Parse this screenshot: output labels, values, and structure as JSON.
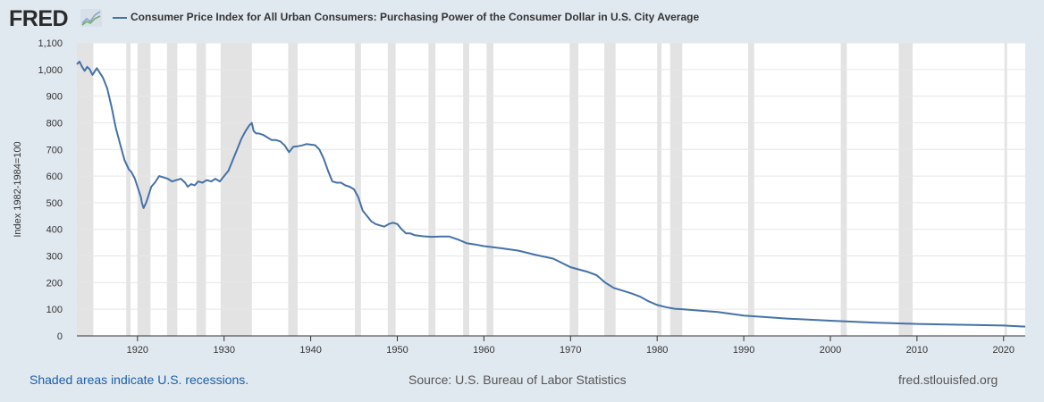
{
  "header": {
    "logo": "FRED",
    "title": "Consumer Price Index for All Urban Consumers: Purchasing Power of the Consumer Dollar in U.S. City Average"
  },
  "footer": {
    "recessions_note": "Shaded areas indicate U.S. recessions.",
    "source": "Source: U.S. Bureau of Labor Statistics",
    "site": "fred.stlouisfed.org"
  },
  "colors": {
    "background": "#e1e9f0",
    "plot": "#ffffff",
    "series": "#4572a7",
    "recession": "#e3e3e3",
    "link": "#1d5ea6"
  },
  "chart_data": {
    "type": "line",
    "ylabel": "Index 1982-1984=100",
    "xlabel": "",
    "xlim": [
      1913,
      2022.5
    ],
    "ylim": [
      0,
      1100
    ],
    "x_ticks": [
      1920,
      1930,
      1940,
      1950,
      1960,
      1970,
      1980,
      1990,
      2000,
      2010,
      2020
    ],
    "x_tick_labels": [
      "1920",
      "1930",
      "1940",
      "1950",
      "1960",
      "1970",
      "1980",
      "1990",
      "2000",
      "2010",
      "2020"
    ],
    "y_ticks": [
      0,
      100,
      200,
      300,
      400,
      500,
      600,
      700,
      800,
      900,
      1000,
      1100
    ],
    "y_tick_labels": [
      "0",
      "100",
      "200",
      "300",
      "400",
      "500",
      "600",
      "700",
      "800",
      "900",
      "1,000",
      "1,100"
    ],
    "grid": "horizontal",
    "recessions": [
      [
        1913.0,
        1914.9
      ],
      [
        1918.7,
        1919.2
      ],
      [
        1920.0,
        1921.5
      ],
      [
        1923.4,
        1924.6
      ],
      [
        1926.8,
        1927.9
      ],
      [
        1929.6,
        1933.2
      ],
      [
        1937.4,
        1938.5
      ],
      [
        1945.1,
        1945.8
      ],
      [
        1948.9,
        1949.8
      ],
      [
        1953.6,
        1954.4
      ],
      [
        1957.6,
        1958.3
      ],
      [
        1960.3,
        1961.1
      ],
      [
        1969.9,
        1970.9
      ],
      [
        1973.9,
        1975.2
      ],
      [
        1980.0,
        1980.5
      ],
      [
        1981.5,
        1982.9
      ],
      [
        1990.5,
        1991.2
      ],
      [
        2001.2,
        2001.9
      ],
      [
        2007.9,
        2009.5
      ],
      [
        2020.1,
        2020.4
      ]
    ],
    "series": [
      {
        "name": "Consumer Price Index for All Urban Consumers: Purchasing Power of the Consumer Dollar in U.S. City Average",
        "x": [
          1913.0,
          1913.3,
          1913.6,
          1913.9,
          1914.2,
          1914.5,
          1914.8,
          1915.0,
          1915.3,
          1915.6,
          1916.0,
          1916.5,
          1917.0,
          1917.5,
          1918.0,
          1918.5,
          1919.0,
          1919.3,
          1919.7,
          1920.0,
          1920.4,
          1920.5,
          1920.7,
          1921.0,
          1921.3,
          1921.6,
          1922.0,
          1922.5,
          1923.0,
          1923.5,
          1924.0,
          1924.5,
          1925.0,
          1925.5,
          1925.8,
          1926.2,
          1926.6,
          1927.0,
          1927.5,
          1928.0,
          1928.5,
          1929.0,
          1929.5,
          1930.0,
          1930.5,
          1931.0,
          1931.5,
          1932.0,
          1932.5,
          1932.9,
          1933.2,
          1933.4,
          1933.7,
          1934.0,
          1934.5,
          1935.0,
          1935.5,
          1936.0,
          1936.5,
          1937.0,
          1937.5,
          1938.0,
          1938.5,
          1939.0,
          1939.5,
          1940.0,
          1940.5,
          1941.0,
          1941.5,
          1942.0,
          1942.5,
          1943.0,
          1943.5,
          1944.0,
          1944.5,
          1945.0,
          1945.5,
          1946.0,
          1946.5,
          1947.0,
          1947.5,
          1948.0,
          1948.5,
          1949.0,
          1949.5,
          1950.0,
          1950.5,
          1951.0,
          1951.5,
          1952.0,
          1953.0,
          1954.0,
          1955.0,
          1956.0,
          1957.0,
          1958.0,
          1959.0,
          1960.0,
          1962.0,
          1964.0,
          1966.0,
          1968.0,
          1970.0,
          1972.0,
          1973.0,
          1974.0,
          1975.0,
          1976.0,
          1977.0,
          1978.0,
          1979.0,
          1980.0,
          1981.0,
          1982.0,
          1983.0,
          1985.0,
          1987.0,
          1990.0,
          1995.0,
          2000.0,
          2005.0,
          2010.0,
          2015.0,
          2020.0,
          2022.5
        ],
        "values": [
          1020,
          1030,
          1010,
          995,
          1010,
          1000,
          980,
          990,
          1005,
          990,
          970,
          930,
          860,
          780,
          720,
          660,
          625,
          615,
          590,
          560,
          520,
          500,
          480,
          500,
          530,
          560,
          575,
          600,
          595,
          590,
          580,
          585,
          590,
          575,
          560,
          570,
          565,
          580,
          575,
          585,
          580,
          590,
          580,
          600,
          620,
          660,
          700,
          740,
          770,
          790,
          800,
          770,
          760,
          760,
          755,
          745,
          735,
          735,
          730,
          715,
          690,
          710,
          712,
          715,
          720,
          718,
          716,
          700,
          665,
          620,
          580,
          575,
          575,
          565,
          560,
          550,
          520,
          470,
          450,
          430,
          420,
          415,
          410,
          420,
          425,
          420,
          400,
          385,
          385,
          378,
          374,
          372,
          373,
          373,
          362,
          348,
          343,
          337,
          329,
          320,
          304,
          290,
          258,
          240,
          228,
          200,
          180,
          170,
          160,
          148,
          130,
          116,
          108,
          102,
          100,
          95,
          90,
          76,
          65,
          57,
          50,
          45,
          42,
          39,
          35
        ]
      }
    ]
  }
}
